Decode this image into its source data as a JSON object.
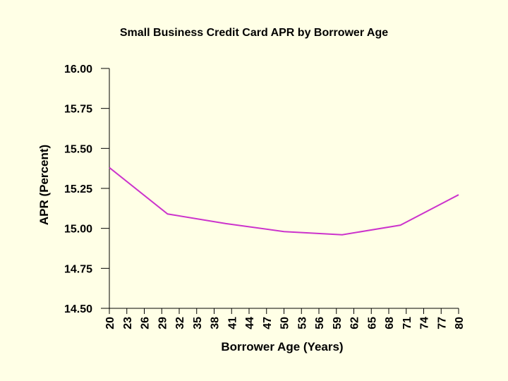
{
  "chart_data": {
    "type": "line",
    "title": "Small Business Credit Card APR by Borrower Age",
    "x_label": "Borrower Age (Years)",
    "y_label": "APR (Percent)",
    "x": [
      20,
      30,
      40,
      50,
      60,
      70,
      80
    ],
    "series": [
      {
        "name": "APR",
        "color": "#cc33cc",
        "values": [
          15.38,
          15.09,
          15.03,
          14.98,
          14.96,
          15.02,
          15.21
        ]
      }
    ],
    "xlim": [
      20,
      80
    ],
    "xticks": [
      20,
      23,
      26,
      29,
      32,
      35,
      38,
      41,
      44,
      47,
      50,
      53,
      56,
      59,
      62,
      65,
      68,
      71,
      74,
      77,
      80
    ],
    "ylim": [
      14.5,
      16
    ],
    "yticks": [
      {
        "value": 14.5,
        "label": "14.50"
      },
      {
        "value": 14.75,
        "label": "14.75"
      },
      {
        "value": 15,
        "label": "15.00"
      },
      {
        "value": 15.25,
        "label": "15.25"
      },
      {
        "value": 15.5,
        "label": "15.50"
      },
      {
        "value": 15.75,
        "label": "15.75"
      },
      {
        "value": 16,
        "label": "16.00"
      }
    ]
  }
}
